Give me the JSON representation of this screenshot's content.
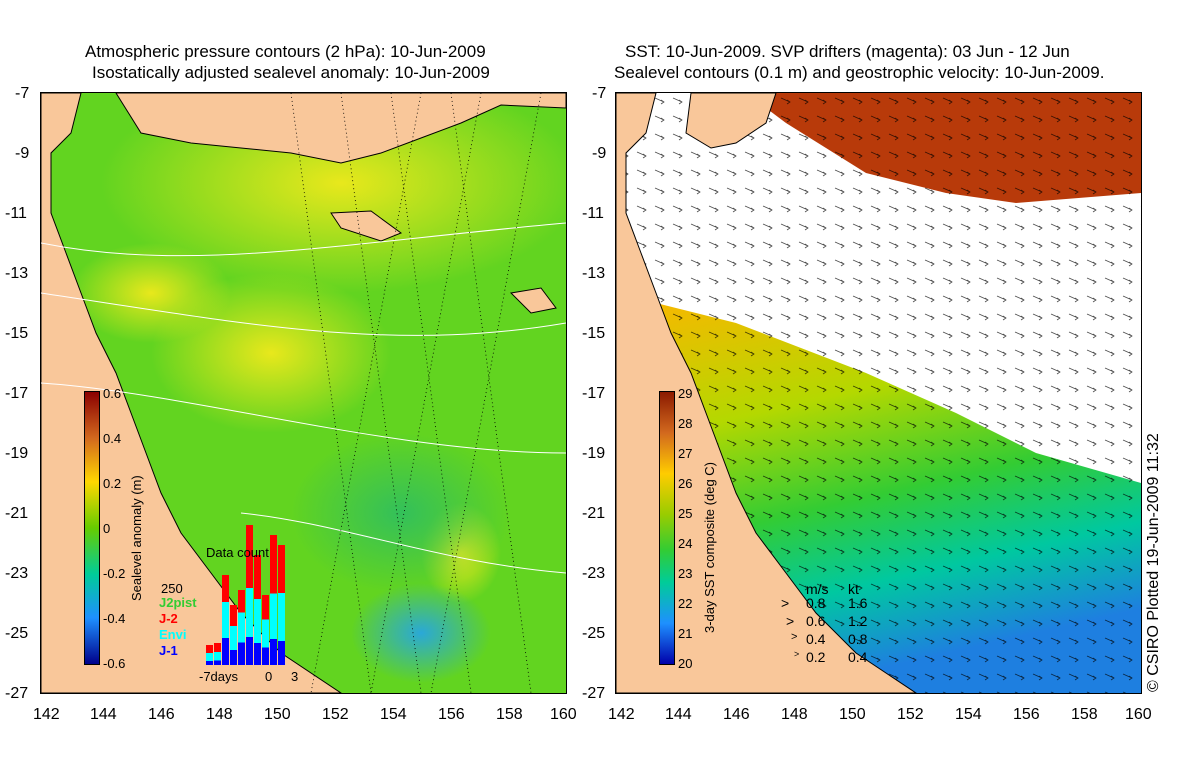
{
  "left_panel": {
    "title_line1": "Atmospheric pressure contours (2 hPa): 10-Jun-2009",
    "title_line2": "Isostatically adjusted sealevel anomaly: 10-Jun-2009",
    "colorbar": {
      "label": "Sealevel anomaly (m)",
      "ticks": [
        "0.6",
        "0.4",
        "0.2",
        "0",
        "-0.2",
        "-0.4",
        "-0.6"
      ],
      "colors": [
        "#8b0000",
        "#d2691e",
        "#ffd700",
        "#66cc00",
        "#00cc99",
        "#1e90ff",
        "#00008b"
      ]
    },
    "data_count": {
      "title": "Data count",
      "max_label": "250",
      "x_ticks": [
        "-7days",
        "0",
        "3"
      ],
      "missions": [
        {
          "name": "J2pist",
          "color": "#33cc33"
        },
        {
          "name": "J-2",
          "color": "#ff0000"
        },
        {
          "name": "Envi",
          "color": "#00ffff"
        },
        {
          "name": "J-1",
          "color": "#0000ff"
        }
      ]
    }
  },
  "right_panel": {
    "title_line1": "SST: 10-Jun-2009. SVP drifters (magenta): 03 Jun - 12 Jun",
    "title_line2": "Sealevel contours (0.1 m) and geostrophic velocity: 10-Jun-2009.",
    "colorbar": {
      "label": "3-day SST composite (deg C)",
      "ticks": [
        "29",
        "28",
        "27",
        "26",
        "25",
        "24",
        "23",
        "22",
        "21",
        "20"
      ],
      "colors": [
        "#8b1a00",
        "#d2691e",
        "#ffcc00",
        "#99cc00",
        "#33cc33",
        "#00cc99",
        "#1e90ff",
        "#0000aa"
      ]
    },
    "velocity_legend": {
      "header_ms": "m/s",
      "header_kt": "kt",
      "rows": [
        {
          "ms": "0.8",
          "kt": "1.6"
        },
        {
          "ms": "0.6",
          "kt": "1.2"
        },
        {
          "ms": "0.4",
          "kt": "0.8"
        },
        {
          "ms": "0.2",
          "kt": "0.4"
        }
      ]
    },
    "credit": "© CSIRO Plotted 19-Jun-2009 11:32"
  },
  "axes": {
    "y_ticks": [
      "-7",
      "-9",
      "-11",
      "-13",
      "-15",
      "-17",
      "-19",
      "-21",
      "-23",
      "-25",
      "-27"
    ],
    "x_ticks": [
      "142",
      "144",
      "146",
      "148",
      "150",
      "152",
      "154",
      "156",
      "158",
      "160"
    ]
  },
  "colors": {
    "land": "#f9c79a",
    "sea_green": "#5cd21e",
    "sea_yellow": "#c8e81e",
    "coast": "#000000",
    "no_data": "#ffffff"
  }
}
